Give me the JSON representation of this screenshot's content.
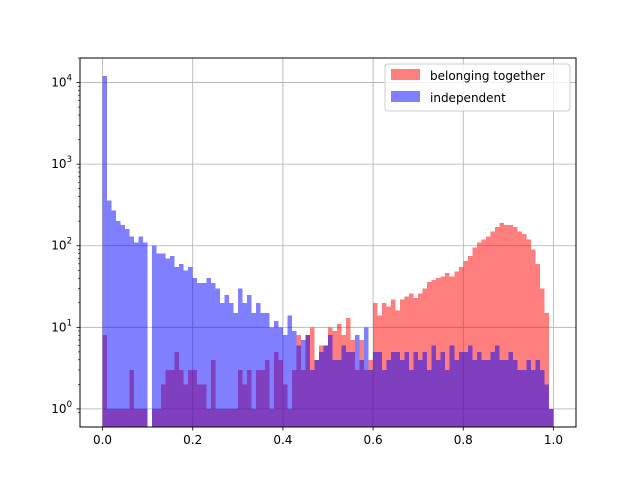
{
  "chart_data": {
    "type": "bar",
    "title": "",
    "xlabel": "",
    "ylabel": "",
    "xlim": [
      -0.05,
      1.05
    ],
    "ylim": [
      0.6,
      20000
    ],
    "yscale": "log",
    "grid": true,
    "legend_position": "top-right",
    "x_ticks": [
      {
        "value": 0.0,
        "label": "0.0"
      },
      {
        "value": 0.2,
        "label": "0.2"
      },
      {
        "value": 0.4,
        "label": "0.4"
      },
      {
        "value": 0.6,
        "label": "0.6"
      },
      {
        "value": 0.8,
        "label": "0.8"
      },
      {
        "value": 1.0,
        "label": "1.0"
      }
    ],
    "y_ticks": [
      {
        "value": 1,
        "base": "10",
        "exp": "0"
      },
      {
        "value": 10,
        "base": "10",
        "exp": "1"
      },
      {
        "value": 100,
        "base": "10",
        "exp": "2"
      },
      {
        "value": 1000,
        "base": "10",
        "exp": "3"
      },
      {
        "value": 10000,
        "base": "10",
        "exp": "4"
      }
    ],
    "bins": {
      "start": 0.0,
      "width": 0.01,
      "count": 100
    },
    "series": [
      {
        "name": "belonging together",
        "color": "#ff0000",
        "alpha": 0.5,
        "values": [
          8,
          1,
          1,
          1,
          1,
          1,
          3,
          1,
          1,
          1,
          0,
          1,
          1,
          2,
          3,
          3,
          5,
          3,
          2,
          3,
          3,
          2,
          2,
          1,
          4,
          1,
          1,
          1,
          1,
          1,
          3,
          2,
          3,
          1,
          3,
          3,
          4,
          1,
          5,
          4,
          2,
          1,
          3,
          8,
          3,
          8,
          10,
          4,
          6,
          6,
          10,
          9,
          11,
          8,
          13,
          7,
          3,
          7,
          3,
          4,
          20,
          14,
          20,
          18,
          22,
          16,
          22,
          24,
          26,
          23,
          26,
          30,
          36,
          38,
          40,
          42,
          46,
          42,
          48,
          55,
          65,
          75,
          95,
          110,
          120,
          130,
          150,
          170,
          190,
          180,
          180,
          170,
          150,
          140,
          120,
          90,
          60,
          30,
          15,
          1
        ]
      },
      {
        "name": "independent",
        "color": "#0000ff",
        "alpha": 0.5,
        "values": [
          12000,
          360,
          270,
          200,
          180,
          160,
          130,
          110,
          130,
          110,
          0,
          100,
          80,
          80,
          70,
          75,
          55,
          60,
          50,
          55,
          40,
          35,
          35,
          40,
          35,
          30,
          20,
          25,
          20,
          15,
          30,
          20,
          25,
          15,
          20,
          15,
          15,
          10,
          12,
          10,
          8,
          14,
          9,
          6,
          7,
          8,
          3,
          4,
          5,
          6,
          8,
          4,
          4,
          6,
          5,
          5,
          8,
          4,
          10,
          3,
          5,
          5,
          3,
          4,
          5,
          5,
          4,
          5,
          3,
          5,
          4,
          5,
          3,
          6,
          4,
          5,
          3,
          6,
          4,
          5,
          5,
          6,
          4,
          5,
          4,
          4,
          5,
          6,
          4,
          4,
          5,
          4,
          3,
          3,
          4,
          3,
          4,
          3,
          2,
          1
        ]
      }
    ]
  }
}
